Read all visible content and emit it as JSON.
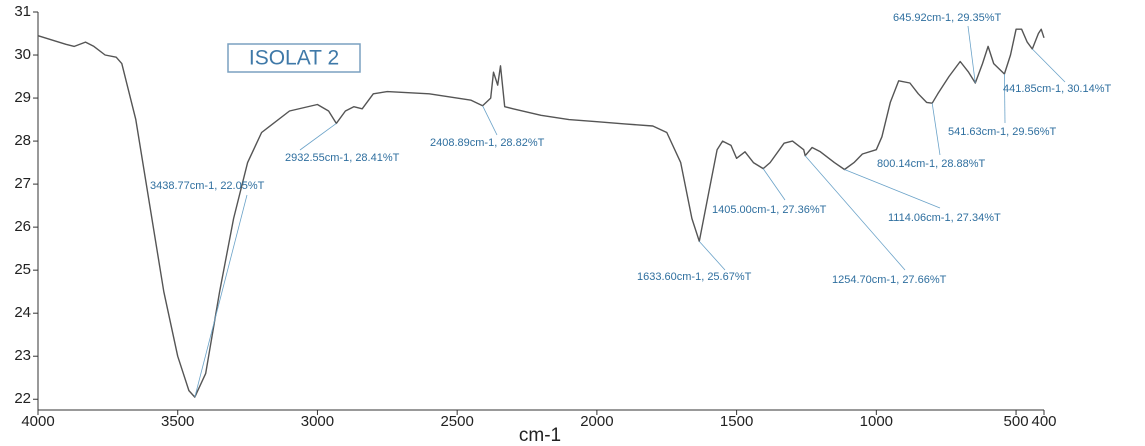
{
  "chart_data": {
    "type": "line",
    "title": "ISOLAT 2",
    "x_label": "cm-1",
    "xlim": [
      4000,
      400
    ],
    "xticks": [
      4000,
      3500,
      3000,
      2500,
      2000,
      1500,
      1000,
      500,
      400
    ],
    "ylim": [
      21.75,
      31
    ],
    "yticks": [
      22,
      23,
      24,
      25,
      26,
      27,
      28,
      29,
      30,
      31
    ],
    "color": "#555555",
    "series": [
      {
        "x": [
          4000,
          3900,
          3870,
          3830,
          3800,
          3760,
          3720,
          3700,
          3650,
          3600,
          3550,
          3500,
          3460,
          3438.77,
          3400,
          3350,
          3300,
          3250,
          3200,
          3100,
          3000,
          2960,
          2932.55,
          2900,
          2870,
          2840,
          2800,
          2750,
          2600,
          2450,
          2408.89,
          2380,
          2370,
          2355,
          2345,
          2330,
          2300,
          2200,
          2100,
          2000,
          1900,
          1800,
          1750,
          1700,
          1660,
          1633.6,
          1600,
          1570,
          1550,
          1520,
          1500,
          1470,
          1440,
          1405,
          1380,
          1330,
          1300,
          1260,
          1254.7,
          1230,
          1200,
          1150,
          1114.06,
          1080,
          1050,
          1000,
          980,
          950,
          920,
          880,
          850,
          820,
          800.14,
          780,
          740,
          700,
          670,
          645.92,
          620,
          600,
          580,
          541.63,
          520,
          500,
          480,
          460,
          441.85,
          420,
          410,
          400
        ],
        "values": [
          30.45,
          30.25,
          30.2,
          30.3,
          30.2,
          30.0,
          29.95,
          29.8,
          28.5,
          26.5,
          24.5,
          23.0,
          22.2,
          22.05,
          22.6,
          24.5,
          26.2,
          27.5,
          28.2,
          28.7,
          28.85,
          28.7,
          28.41,
          28.7,
          28.8,
          28.75,
          29.1,
          29.15,
          29.1,
          28.95,
          28.82,
          29.0,
          29.6,
          29.3,
          29.75,
          28.8,
          28.75,
          28.6,
          28.5,
          28.45,
          28.4,
          28.35,
          28.2,
          27.5,
          26.2,
          25.67,
          26.8,
          27.8,
          28.0,
          27.9,
          27.6,
          27.75,
          27.5,
          27.36,
          27.5,
          27.95,
          28.0,
          27.8,
          27.66,
          27.85,
          27.75,
          27.5,
          27.34,
          27.5,
          27.7,
          27.8,
          28.1,
          28.9,
          29.4,
          29.35,
          29.1,
          28.9,
          28.88,
          29.1,
          29.5,
          29.85,
          29.6,
          29.35,
          29.8,
          30.2,
          29.8,
          29.56,
          30.0,
          30.6,
          30.6,
          30.3,
          30.14,
          30.5,
          30.6,
          30.4
        ]
      }
    ],
    "annotations": [
      {
        "text": "3438.77cm-1, 22.05%T",
        "x": 3438.77,
        "y": 22.05
      },
      {
        "text": "2932.55cm-1, 28.41%T",
        "x": 2932.55,
        "y": 28.41
      },
      {
        "text": "2408.89cm-1, 28.82%T",
        "x": 2408.89,
        "y": 28.82
      },
      {
        "text": "1633.60cm-1, 25.67%T",
        "x": 1633.6,
        "y": 25.67
      },
      {
        "text": "1405.00cm-1, 27.36%T",
        "x": 1405,
        "y": 27.36
      },
      {
        "text": "1254.70cm-1, 27.66%T",
        "x": 1254.7,
        "y": 27.66
      },
      {
        "text": "1114.06cm-1, 27.34%T",
        "x": 1114.06,
        "y": 27.34
      },
      {
        "text": "800.14cm-1, 28.88%T",
        "x": 800.14,
        "y": 28.88
      },
      {
        "text": "645.92cm-1, 29.35%T",
        "x": 645.92,
        "y": 29.35
      },
      {
        "text": "541.63cm-1, 29.56%T",
        "x": 541.63,
        "y": 29.56
      },
      {
        "text": "441.85cm-1, 30.14%T",
        "x": 441.85,
        "y": 30.14
      }
    ]
  }
}
